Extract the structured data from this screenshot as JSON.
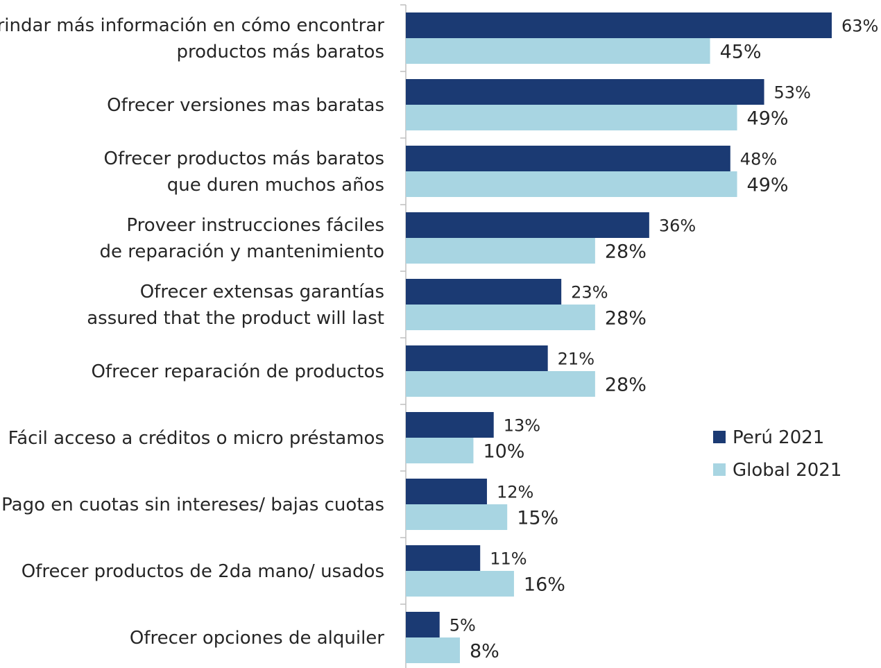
{
  "chart_data": {
    "type": "bar",
    "orientation": "horizontal",
    "title": "",
    "xlabel": "",
    "ylabel": "",
    "xlim": [
      0,
      63
    ],
    "categories": [
      [
        "Brindar más información en cómo encontrar",
        "productos más baratos"
      ],
      [
        "Ofrecer versiones mas baratas"
      ],
      [
        "Ofrecer productos más baratos",
        "que duren muchos años"
      ],
      [
        "Proveer instrucciones fáciles",
        "de reparación y mantenimiento"
      ],
      [
        "Ofrecer extensas garantías",
        "assured that the product will last"
      ],
      [
        "Ofrecer reparación de productos"
      ],
      [
        "Fácil acceso a créditos o micro préstamos"
      ],
      [
        "Pago en cuotas sin intereses/ bajas cuotas"
      ],
      [
        "Ofrecer productos de 2da mano/ usados"
      ],
      [
        "Ofrecer opciones de alquiler"
      ]
    ],
    "series": [
      {
        "name": "Perú 2021",
        "color": "#1b3a73",
        "values": [
          63,
          53,
          48,
          36,
          23,
          21,
          13,
          12,
          11,
          5
        ],
        "labels": [
          "63%",
          "53%",
          "48%",
          "36%",
          "23%",
          "21%",
          "13%",
          "12%",
          "11%",
          "5%"
        ]
      },
      {
        "name": "Global 2021",
        "color": "#a8d5e2",
        "values": [
          45,
          49,
          49,
          28,
          28,
          28,
          10,
          15,
          16,
          8
        ],
        "labels": [
          "45%",
          "49%",
          "49%",
          "28%",
          "28%",
          "28%",
          "10%",
          "15%",
          "16%",
          "8%"
        ]
      }
    ],
    "legend": {
      "position": "right-center"
    },
    "grid": false
  }
}
